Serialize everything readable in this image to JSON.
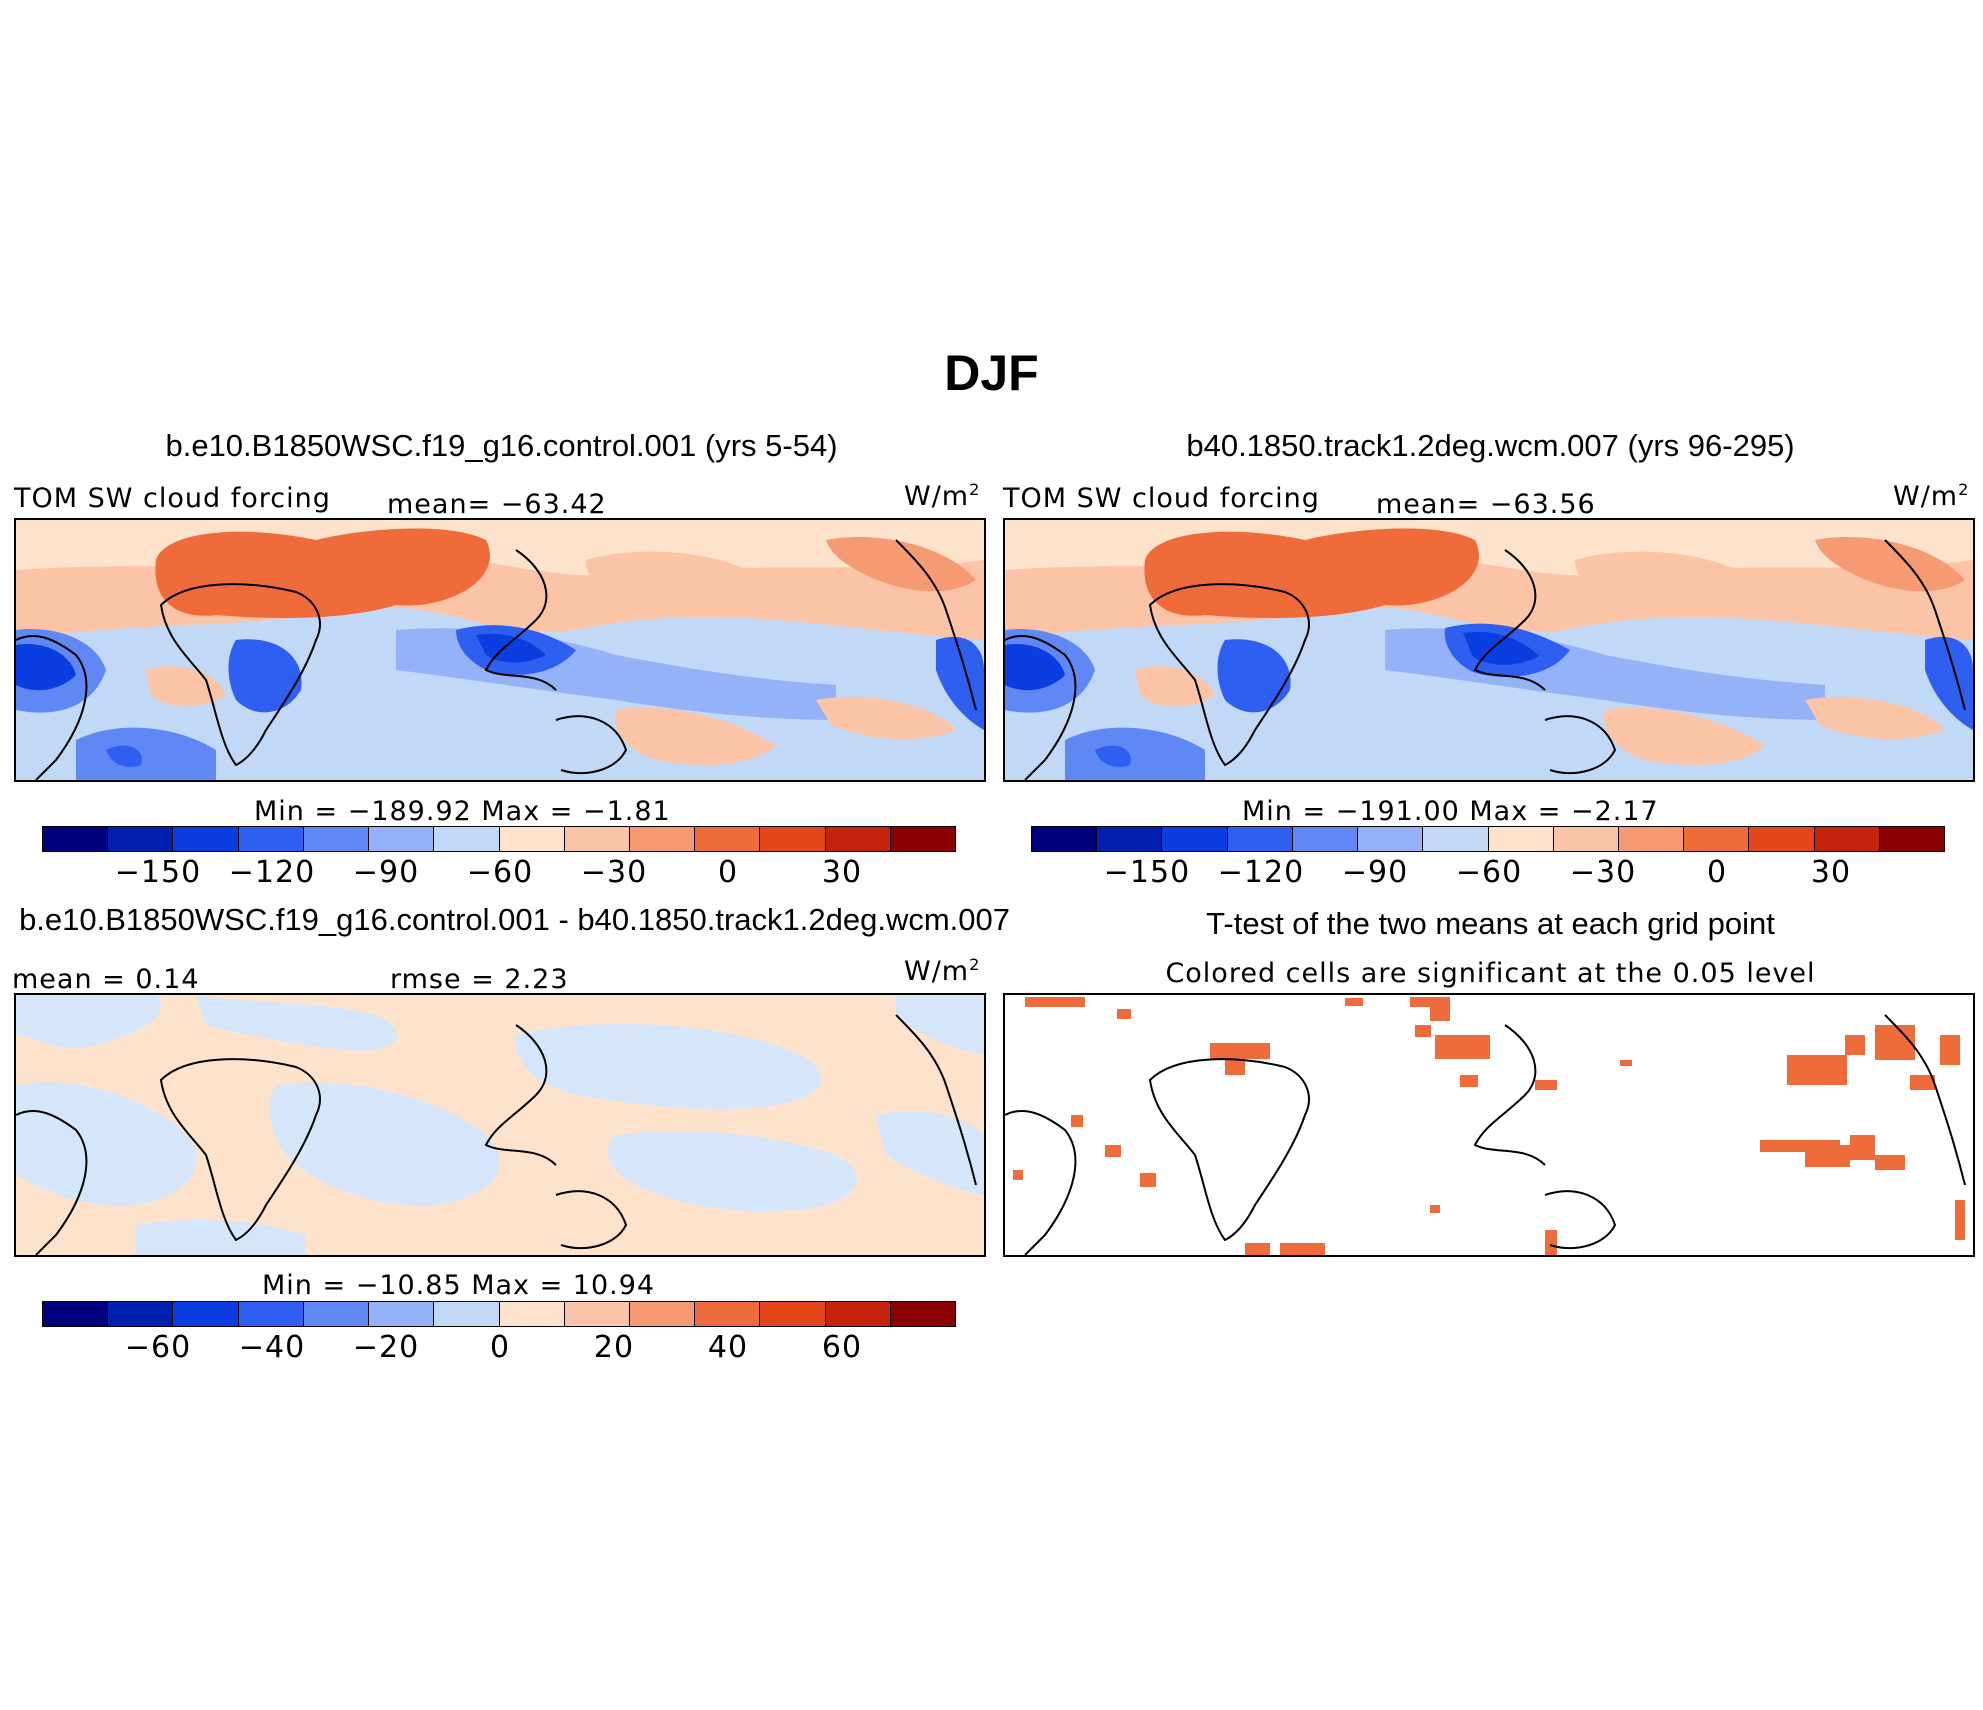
{
  "season_title": "DJF",
  "palette": [
    "#00007f",
    "#0020b0",
    "#0a3ee0",
    "#2f5ff0",
    "#5f88f5",
    "#93b2f7",
    "#c2d8f7",
    "#fde3cc",
    "#fbc4a7",
    "#f59a72",
    "#f06b3a",
    "#e54619",
    "#c7230c",
    "#8b0000"
  ],
  "chart_data": [
    {
      "type": "heatmap",
      "title": "b.e10.B1850WSC.f19_g16.control.001 (yrs 5-54)",
      "left_label": "TOM SW cloud forcing",
      "mean_text": "mean= −63.42",
      "units": "W/m",
      "units_sup": "2",
      "minmax_text": "Min = −189.92 Max = −1.81",
      "min": -189.92,
      "max": -1.81,
      "mean": -63.42,
      "colorbar_ticks": [
        "−150",
        "−120",
        "−90",
        "−60",
        "−30",
        "0",
        "30"
      ],
      "colorbar_levels": [
        -150,
        -120,
        -90,
        -60,
        -30,
        0,
        30
      ]
    },
    {
      "type": "heatmap",
      "title": "b40.1850.track1.2deg.wcm.007 (yrs 96-295)",
      "left_label": "TOM SW cloud forcing",
      "mean_text": "mean= −63.56",
      "units": "W/m",
      "units_sup": "2",
      "minmax_text": "Min = −191.00 Max = −2.17",
      "min": -191.0,
      "max": -2.17,
      "mean": -63.56,
      "colorbar_ticks": [
        "−150",
        "−120",
        "−90",
        "−60",
        "−30",
        "0",
        "30"
      ],
      "colorbar_levels": [
        -150,
        -120,
        -90,
        -60,
        -30,
        0,
        30
      ]
    },
    {
      "type": "heatmap",
      "title": "b.e10.B1850WSC.f19_g16.control.001 - b40.1850.track1.2deg.wcm.007",
      "left_label": "mean =   0.14",
      "rmse_text": "rmse =   2.23",
      "units": "W/m",
      "units_sup": "2",
      "minmax_text": "Min = −10.85 Max =  10.94",
      "min": -10.85,
      "max": 10.94,
      "mean": 0.14,
      "rmse": 2.23,
      "colorbar_ticks": [
        "−60",
        "−40",
        "−20",
        "0",
        "20",
        "40",
        "60"
      ],
      "colorbar_levels": [
        -60,
        -40,
        -20,
        0,
        20,
        40,
        60
      ]
    },
    {
      "type": "heatmap",
      "title": "T-test of the two means at each grid point",
      "subtitle": "Colored cells are significant at the 0.05 level",
      "significance_level": 0.05
    }
  ]
}
